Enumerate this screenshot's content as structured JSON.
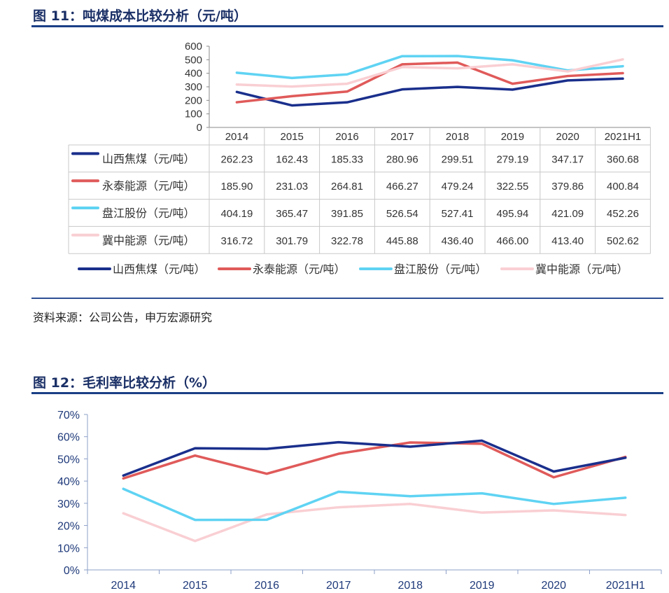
{
  "figure1": {
    "title": "图 11：吨煤成本比较分析（元/吨）",
    "source": "资料来源：公司公告，申万宏源研究",
    "chart_data": {
      "type": "line",
      "categories": [
        "2014",
        "2015",
        "2016",
        "2017",
        "2018",
        "2019",
        "2020",
        "2021H1"
      ],
      "ylim": [
        0,
        600
      ],
      "yticks": [
        "0",
        "100",
        "200",
        "300",
        "400",
        "500",
        "600"
      ],
      "series": [
        {
          "name": "山西焦煤（元/吨）",
          "color": "#1a2f8c",
          "values": [
            262.23,
            162.43,
            185.33,
            280.96,
            299.51,
            279.19,
            347.17,
            360.68
          ],
          "labels": [
            "262.23",
            "162.43",
            "185.33",
            "280.96",
            "299.51",
            "279.19",
            "347.17",
            "360.68"
          ]
        },
        {
          "name": "永泰能源（元/吨）",
          "color": "#e05a5a",
          "values": [
            185.9,
            231.03,
            264.81,
            466.27,
            479.24,
            322.55,
            379.86,
            400.84
          ],
          "labels": [
            "185.90",
            "231.03",
            "264.81",
            "466.27",
            "479.24",
            "322.55",
            "379.86",
            "400.84"
          ]
        },
        {
          "name": "盘江股份（元/吨）",
          "color": "#5fd3f3",
          "values": [
            404.19,
            365.47,
            391.85,
            526.54,
            527.41,
            495.94,
            421.09,
            452.26
          ],
          "labels": [
            "404.19",
            "365.47",
            "391.85",
            "526.54",
            "527.41",
            "495.94",
            "421.09",
            "452.26"
          ]
        },
        {
          "name": "冀中能源（元/吨）",
          "color": "#f9cfd3",
          "values": [
            316.72,
            301.79,
            322.78,
            445.88,
            436.4,
            466.0,
            413.4,
            502.62
          ],
          "labels": [
            "316.72",
            "301.79",
            "322.78",
            "445.88",
            "436.40",
            "466.00",
            "413.40",
            "502.62"
          ]
        }
      ],
      "legend": "bottom"
    }
  },
  "figure2": {
    "title": "图 12：毛利率比较分析（%）",
    "chart_data": {
      "type": "line",
      "categories": [
        "2014",
        "2015",
        "2016",
        "2017",
        "2018",
        "2019",
        "2020",
        "2021H1"
      ],
      "ylim": [
        0,
        70
      ],
      "yticks": [
        "0%",
        "10%",
        "20%",
        "30%",
        "40%",
        "50%",
        "60%",
        "70%"
      ],
      "series": [
        {
          "color": "#1a2f8c",
          "values": [
            42.5,
            54.8,
            54.5,
            57.5,
            55.5,
            58.2,
            44.3,
            50.5
          ]
        },
        {
          "color": "#e05a5a",
          "values": [
            41.2,
            51.5,
            43.3,
            52.3,
            57.4,
            56.8,
            41.7,
            50.9
          ]
        },
        {
          "color": "#5fd3f3",
          "values": [
            36.5,
            22.5,
            22.6,
            35.2,
            33.2,
            34.5,
            29.7,
            32.5
          ]
        },
        {
          "color": "#f9cfd3",
          "values": [
            25.5,
            13.0,
            25.0,
            28.2,
            29.7,
            25.8,
            26.8,
            24.7
          ]
        }
      ]
    }
  }
}
